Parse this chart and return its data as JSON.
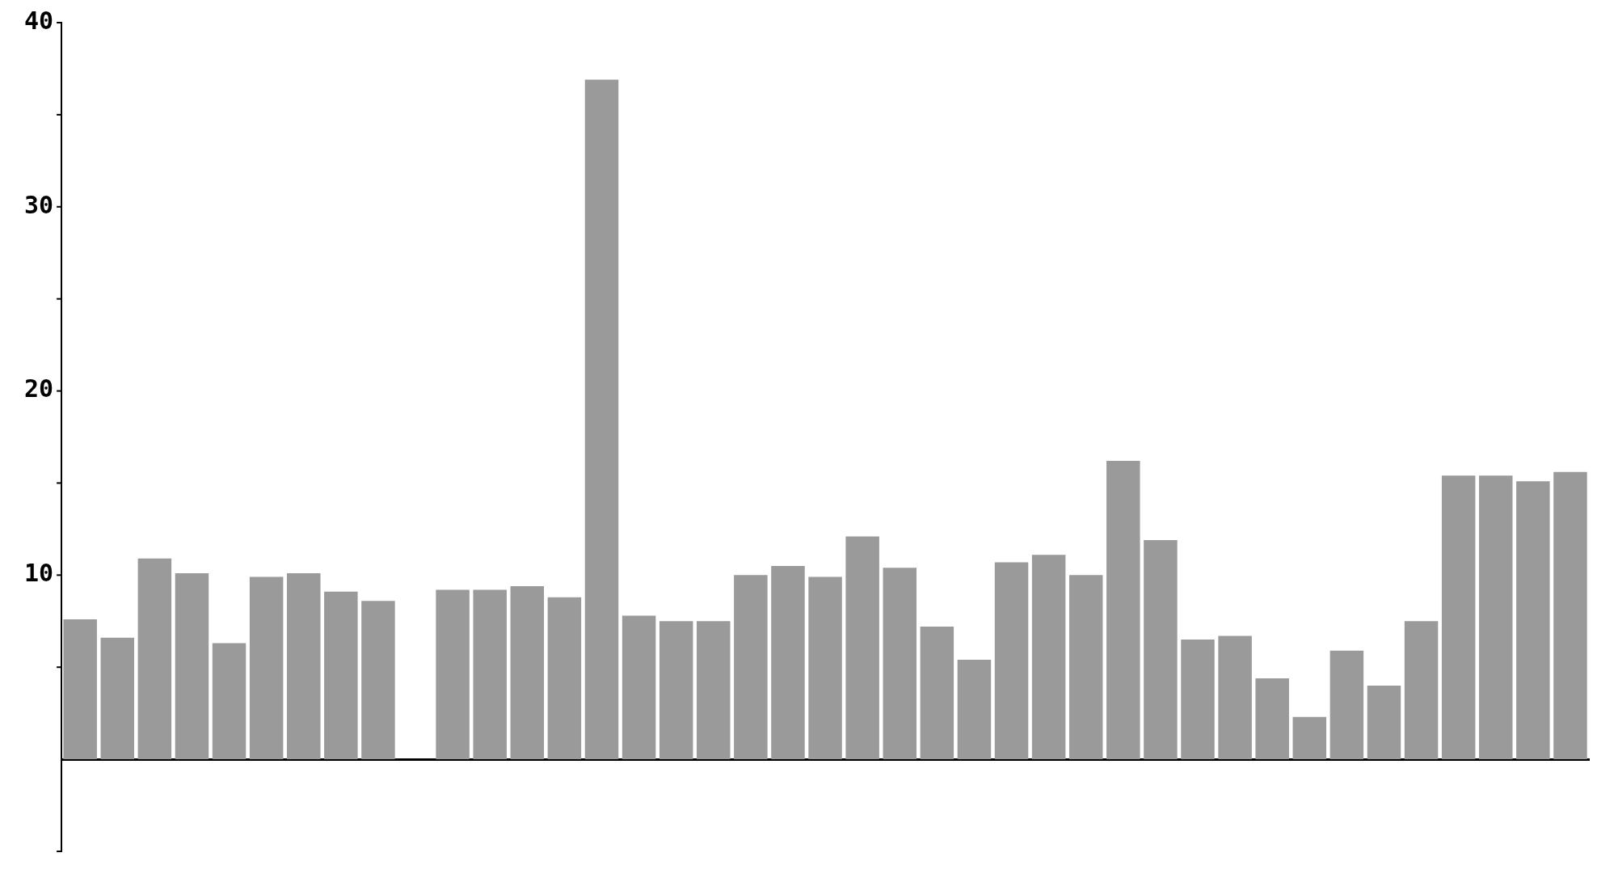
{
  "chart_data": {
    "type": "bar",
    "tick_labels": "y",
    "grid": false,
    "legend": false,
    "color": "#9a9a9a",
    "categories": [
      null,
      null,
      null,
      null,
      null,
      null,
      null,
      null,
      null,
      null,
      null,
      null,
      null,
      null,
      null,
      null,
      null,
      null,
      null,
      null,
      null,
      null,
      null,
      null,
      null,
      null,
      null,
      null,
      null,
      null,
      null,
      null,
      null,
      null,
      null,
      null,
      null,
      null,
      null,
      null,
      null
    ],
    "values": [
      7.6,
      6.6,
      10.9,
      10.1,
      6.3,
      9.9,
      10.1,
      9.1,
      8.6,
      null,
      9.2,
      9.2,
      9.4,
      8.8,
      36.9,
      7.8,
      7.5,
      7.5,
      10.0,
      10.5,
      9.9,
      12.1,
      10.4,
      7.2,
      5.4,
      10.7,
      11.1,
      10.0,
      16.2,
      11.9,
      6.5,
      6.7,
      4.4,
      2.3,
      5.9,
      4.0,
      7.5,
      15.4,
      15.4,
      15.1,
      15.6
    ],
    "ylim": [
      -5,
      40
    ],
    "yticks": [
      {
        "value": -5,
        "label": null
      },
      {
        "value": 5,
        "label": null
      },
      10,
      {
        "value": 15,
        "label": null
      },
      20,
      {
        "value": 25,
        "label": null
      },
      30,
      {
        "value": 35,
        "label": null
      },
      40
    ]
  }
}
